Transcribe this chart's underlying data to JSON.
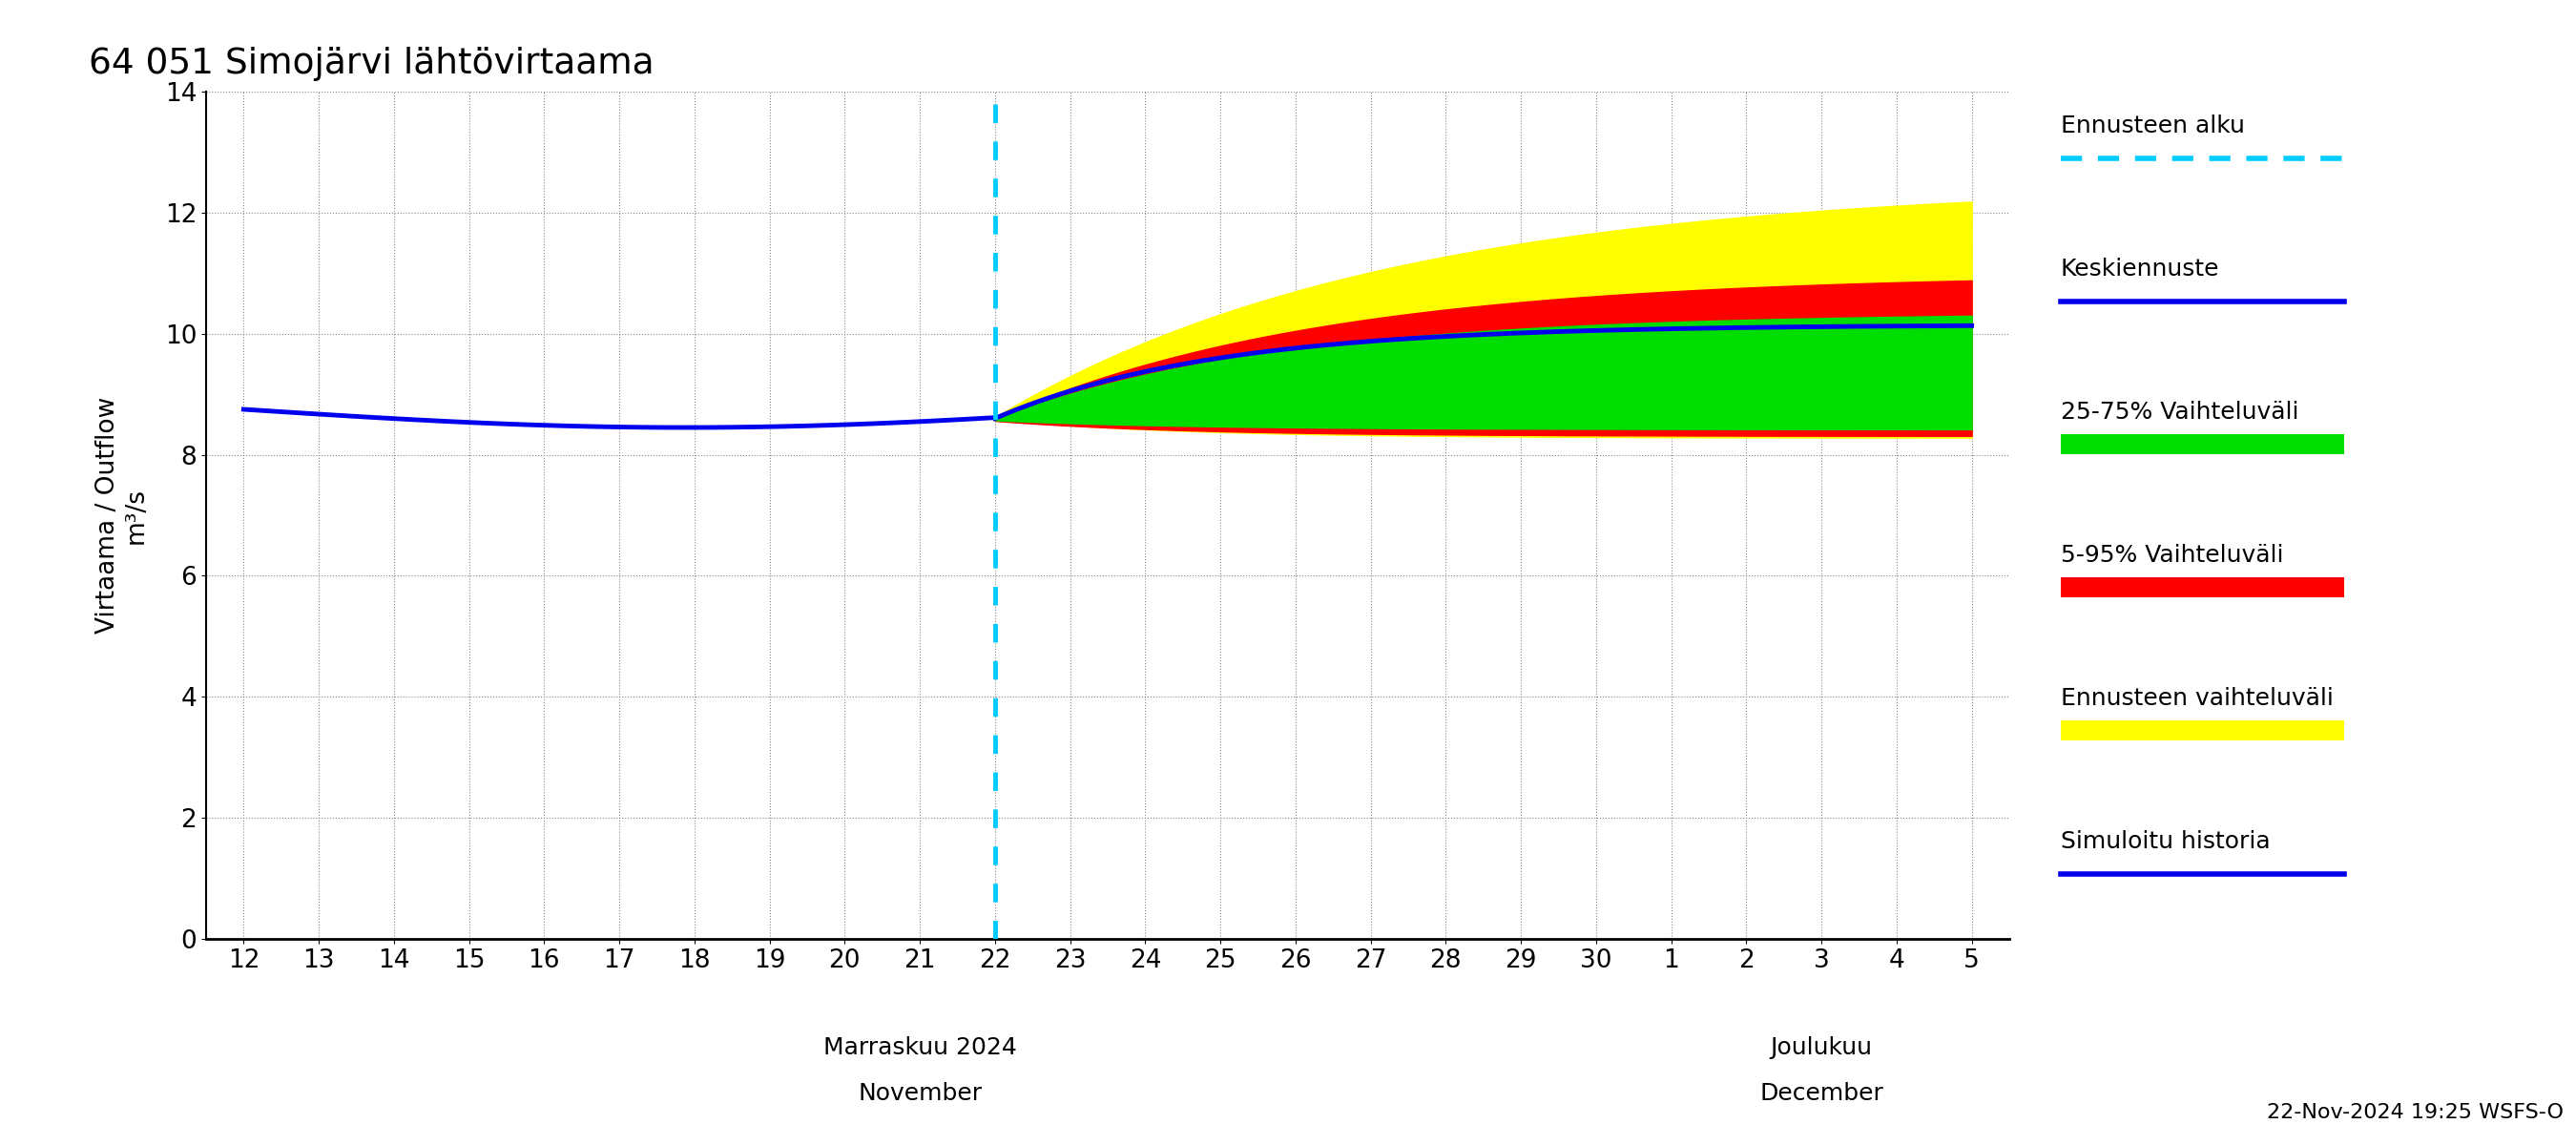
{
  "title": "64 051 Simojärvi lähtövirtaama",
  "ylabel_top": "Virtaama / Outflow",
  "ylabel_bottom": "m³/s",
  "xlabel_left_top": "Marraskuu 2024",
  "xlabel_left_bottom": "November",
  "xlabel_right_top": "Joulukuu",
  "xlabel_right_bottom": "December",
  "timestamp": "22-Nov-2024 19:25 WSFS-O",
  "ylim": [
    0,
    14
  ],
  "yticks": [
    0,
    2,
    4,
    6,
    8,
    10,
    12,
    14
  ],
  "colors": {
    "background": "#ffffff",
    "grid": "#888888",
    "history_line": "#0000ee",
    "median_line": "#0000ee",
    "band_25_75": "#00dd00",
    "band_5_95": "#ff0000",
    "band_outer": "#ffff00",
    "forecast_vline": "#00ccff"
  },
  "legend_items": [
    {
      "label": "Ennusteen alku",
      "color": "#00ccff",
      "type": "dashed_line"
    },
    {
      "label": "Keskiennuste",
      "color": "#0000ee",
      "type": "line"
    },
    {
      "label": "25-75% Vaihteluväli",
      "color": "#00dd00",
      "type": "patch"
    },
    {
      "label": "5-95% Vaihteluväli",
      "color": "#ff0000",
      "type": "patch"
    },
    {
      "label": "Ennusteen vaihteluväli",
      "color": "#ffff00",
      "type": "patch"
    },
    {
      "label": "Simuloitu historia",
      "color": "#0000ee",
      "type": "line"
    }
  ]
}
